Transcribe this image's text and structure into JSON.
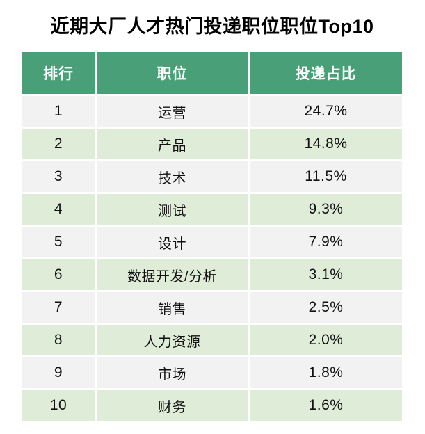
{
  "title": "近期大厂人才热门投递职位职位Top10",
  "table": {
    "columns": [
      {
        "key": "rank",
        "label": "排行"
      },
      {
        "key": "position",
        "label": "职位"
      },
      {
        "key": "share",
        "label": "投递占比"
      }
    ],
    "rows": [
      {
        "rank": "1",
        "position": "运营",
        "share": "24.7%"
      },
      {
        "rank": "2",
        "position": "产品",
        "share": "14.8%"
      },
      {
        "rank": "3",
        "position": "技术",
        "share": "11.5%"
      },
      {
        "rank": "4",
        "position": "测试",
        "share": "9.3%"
      },
      {
        "rank": "5",
        "position": "设计",
        "share": "7.9%"
      },
      {
        "rank": "6",
        "position": "数据开发/分析",
        "share": "3.1%"
      },
      {
        "rank": "7",
        "position": "销售",
        "share": "2.5%"
      },
      {
        "rank": "8",
        "position": "人力资源",
        "share": "2.0%"
      },
      {
        "rank": "9",
        "position": "市场",
        "share": "1.8%"
      },
      {
        "rank": "10",
        "position": "财务",
        "share": "1.6%"
      }
    ]
  },
  "colors": {
    "header_bg": "#49A078",
    "row_gray": "#F2F2F2",
    "row_green": "#DFEDD8"
  },
  "chart_data": {
    "type": "table",
    "title": "近期大厂人才热门投递职位职位Top10",
    "columns": [
      "排行",
      "职位",
      "投递占比"
    ],
    "categories": [
      "运营",
      "产品",
      "技术",
      "测试",
      "设计",
      "数据开发/分析",
      "销售",
      "人力资源",
      "市场",
      "财务"
    ],
    "ranks": [
      1,
      2,
      3,
      4,
      5,
      6,
      7,
      8,
      9,
      10
    ],
    "values": [
      24.7,
      14.8,
      11.5,
      9.3,
      7.9,
      3.1,
      2.5,
      2.0,
      1.8,
      1.6
    ],
    "unit": "%",
    "legend_position": "none",
    "grid": false
  }
}
